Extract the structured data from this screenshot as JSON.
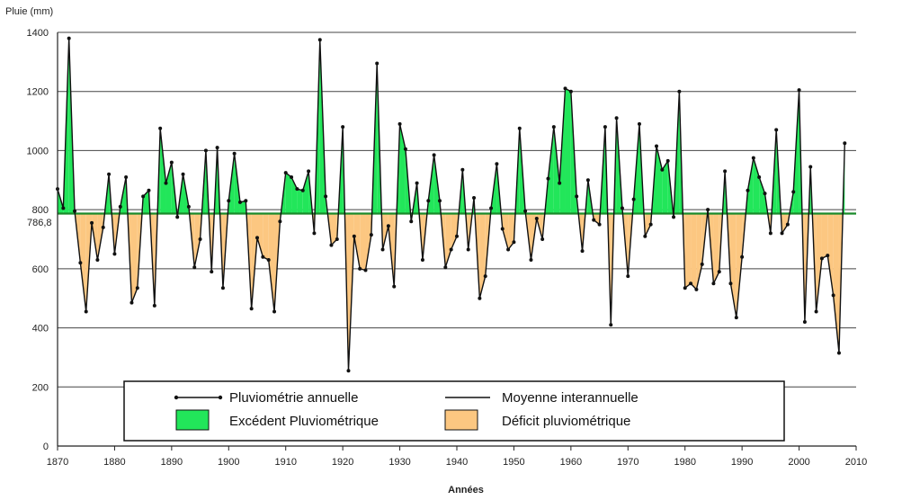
{
  "chart_data": {
    "type": "area",
    "ylabel": "Pluie (mm)",
    "xlabel": "Années",
    "xlim": [
      1870,
      2010
    ],
    "ylim": [
      0,
      1400
    ],
    "x_ticks": [
      1870,
      1880,
      1890,
      1900,
      1910,
      1920,
      1930,
      1940,
      1950,
      1960,
      1970,
      1980,
      1990,
      2000,
      2010
    ],
    "y_ticks": [
      0,
      200,
      400,
      600,
      800,
      1000,
      1200,
      1400
    ],
    "mean_value": 786.8,
    "mean_label": "786,8",
    "grid": "horizontal",
    "colors": {
      "excess": "#22e65a",
      "deficit": "#fcc781",
      "line": "#111111",
      "mean": "#1a8a2a",
      "grid": "#444444"
    },
    "legend": {
      "position": "bottom-center",
      "annual_label": "Pluviométrie annuelle",
      "mean_label": "Moyenne interannuelle",
      "excess_label": "Excédent Pluviométrique",
      "deficit_label": "Déficit pluviométrique"
    },
    "series": [
      {
        "name": "Pluviométrie annuelle",
        "x": [
          1870,
          1871,
          1872,
          1873,
          1874,
          1875,
          1876,
          1877,
          1878,
          1879,
          1880,
          1881,
          1882,
          1883,
          1884,
          1885,
          1886,
          1887,
          1888,
          1889,
          1890,
          1891,
          1892,
          1893,
          1894,
          1895,
          1896,
          1897,
          1898,
          1899,
          1900,
          1901,
          1902,
          1903,
          1904,
          1905,
          1906,
          1907,
          1908,
          1909,
          1910,
          1911,
          1912,
          1913,
          1914,
          1915,
          1916,
          1917,
          1918,
          1919,
          1920,
          1921,
          1922,
          1923,
          1924,
          1925,
          1926,
          1927,
          1928,
          1929,
          1930,
          1931,
          1932,
          1933,
          1934,
          1935,
          1936,
          1937,
          1938,
          1939,
          1940,
          1941,
          1942,
          1943,
          1944,
          1945,
          1946,
          1947,
          1948,
          1949,
          1950,
          1951,
          1952,
          1953,
          1954,
          1955,
          1956,
          1957,
          1958,
          1959,
          1960,
          1961,
          1962,
          1963,
          1964,
          1965,
          1966,
          1967,
          1968,
          1969,
          1970,
          1971,
          1972,
          1973,
          1974,
          1975,
          1976,
          1977,
          1978,
          1979,
          1980,
          1981,
          1982,
          1983,
          1984,
          1985,
          1986,
          1987,
          1988,
          1989,
          1990,
          1991,
          1992,
          1993,
          1994,
          1995,
          1996,
          1997,
          1998,
          1999,
          2000,
          2001,
          2002,
          2003,
          2004,
          2005,
          2006,
          2007,
          2008
        ],
        "y": [
          870,
          805,
          1380,
          795,
          620,
          455,
          755,
          630,
          740,
          920,
          650,
          810,
          910,
          485,
          535,
          845,
          865,
          475,
          1075,
          890,
          960,
          775,
          920,
          810,
          605,
          700,
          1000,
          590,
          1010,
          535,
          830,
          990,
          825,
          830,
          465,
          705,
          640,
          630,
          455,
          760,
          925,
          910,
          870,
          865,
          930,
          720,
          1375,
          845,
          680,
          700,
          1080,
          255,
          710,
          600,
          595,
          715,
          1295,
          665,
          745,
          540,
          1090,
          1005,
          760,
          890,
          630,
          830,
          985,
          830,
          605,
          665,
          710,
          935,
          665,
          840,
          500,
          575,
          805,
          955,
          735,
          665,
          690,
          1075,
          795,
          630,
          770,
          700,
          905,
          1080,
          890,
          1210,
          1200,
          845,
          660,
          900,
          765,
          750,
          1080,
          410,
          1110,
          805,
          575,
          835,
          1090,
          710,
          750,
          1015,
          935,
          965,
          775,
          1200,
          535,
          550,
          530,
          615,
          800,
          550,
          590,
          930,
          550,
          435,
          640,
          865,
          975,
          910,
          855,
          720,
          1070,
          720,
          750,
          860,
          1205,
          420,
          945,
          455,
          635,
          645,
          510,
          315,
          1025
        ]
      }
    ]
  }
}
